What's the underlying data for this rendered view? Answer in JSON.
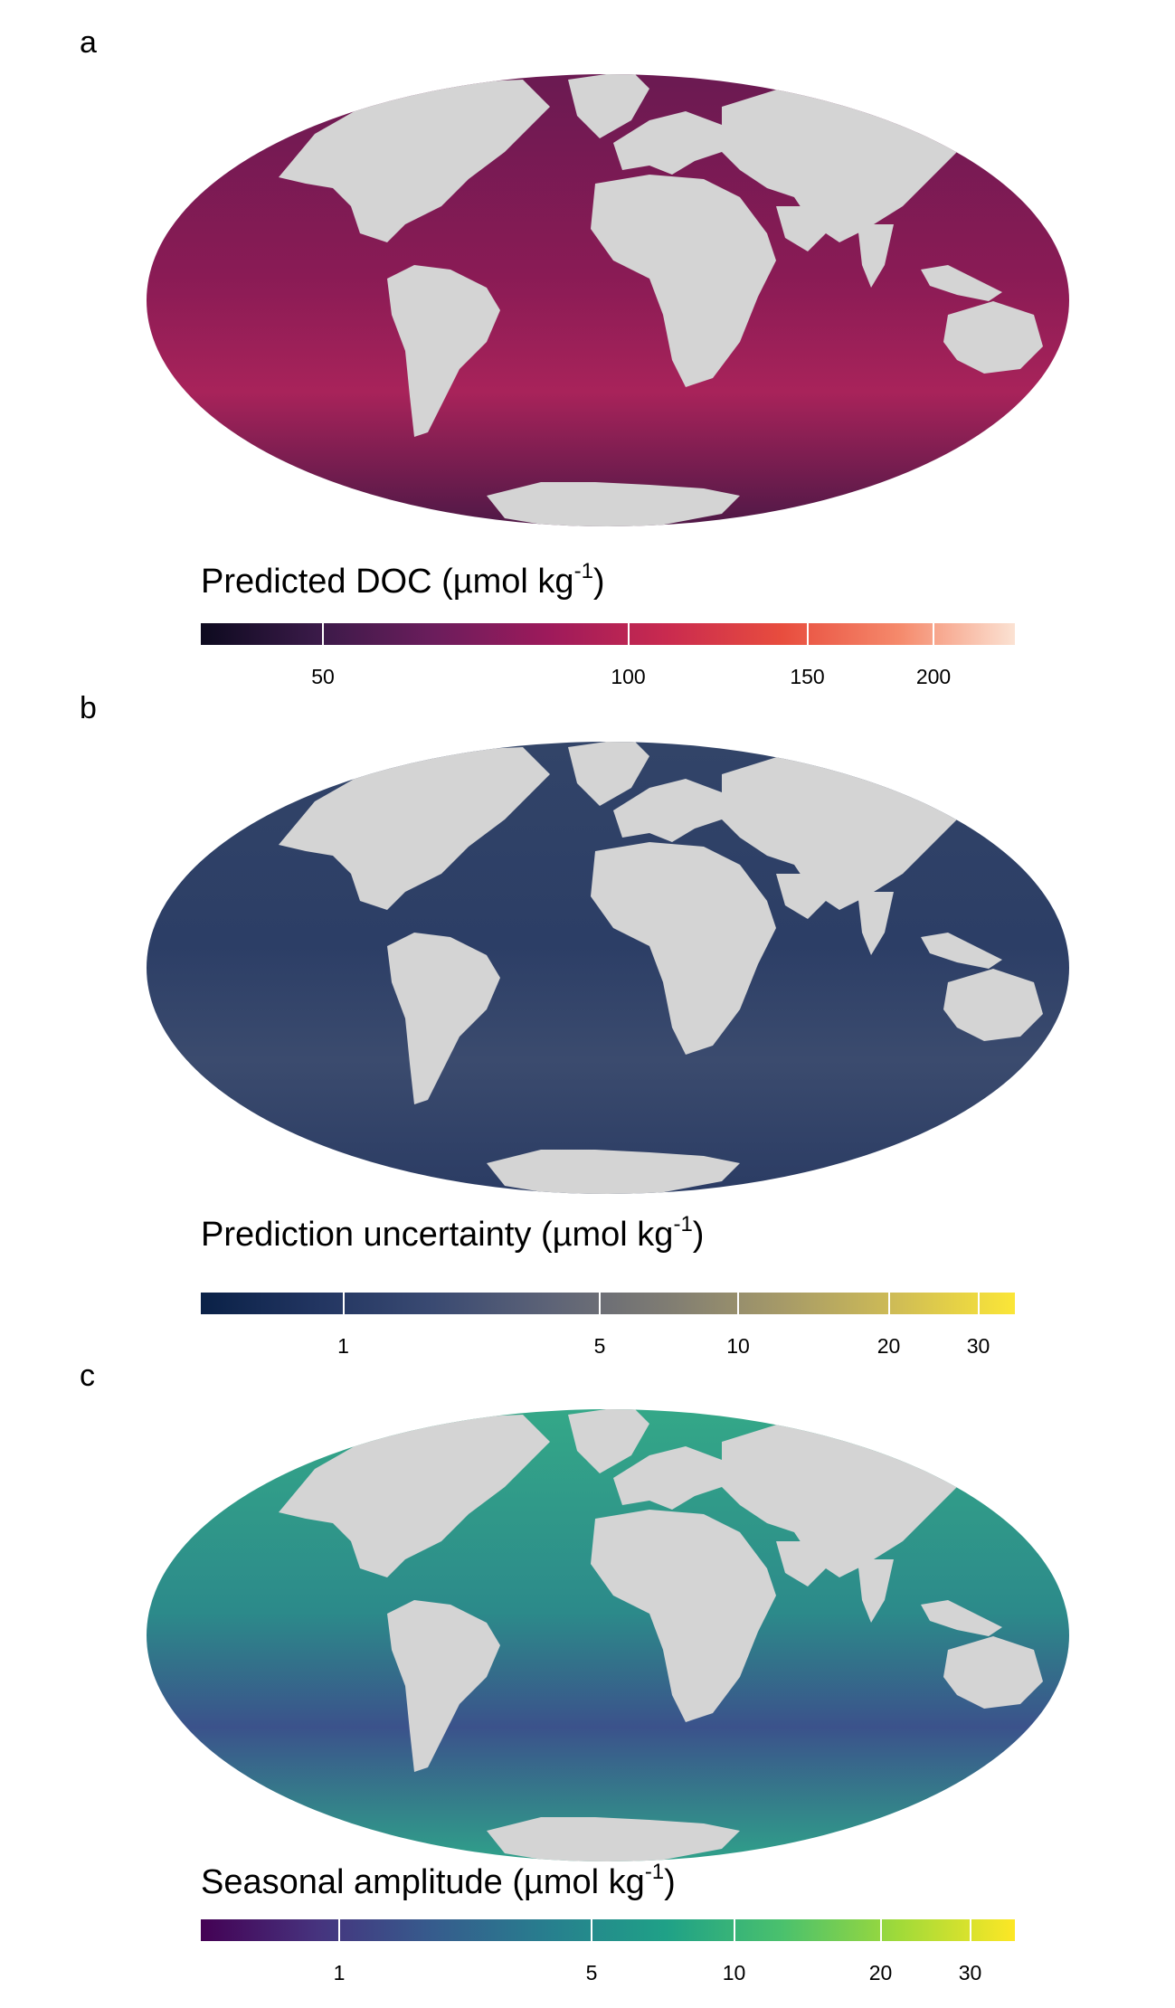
{
  "panels": [
    {
      "letter": "a",
      "legend": {
        "title": "Predicted DOC (µmol kg",
        "title_sup": "-1",
        "title_end": ")",
        "ticks": [
          {
            "label": "50",
            "frac": 0.15
          },
          {
            "label": "100",
            "frac": 0.525
          },
          {
            "label": "150",
            "frac": 0.745
          },
          {
            "label": "200",
            "frac": 0.9
          }
        ],
        "colors": [
          "#0d0a1f",
          "#3a1a48",
          "#6b1d5c",
          "#9e1a5b",
          "#c92a4f",
          "#e84d3e",
          "#f5896b",
          "#fbe2d3"
        ]
      },
      "ocean": {
        "base": "#8a1b55",
        "north": "#6a1a52",
        "south": "#4c1846",
        "coast": "#e5474e",
        "warm": "#a8235a"
      }
    },
    {
      "letter": "b",
      "legend": {
        "title": "Prediction uncertainty (µmol kg",
        "title_sup": "-1",
        "title_end": ")",
        "ticks": [
          {
            "label": "1",
            "frac": 0.175
          },
          {
            "label": "5",
            "frac": 0.49
          },
          {
            "label": "10",
            "frac": 0.66
          },
          {
            "label": "20",
            "frac": 0.845
          },
          {
            "label": "30",
            "frac": 0.955
          }
        ],
        "colors": [
          "#0a2147",
          "#223561",
          "#3a4a72",
          "#5d6377",
          "#7f7c73",
          "#a69a68",
          "#d0bd55",
          "#fbe637"
        ]
      },
      "ocean": {
        "base": "#2c3e66",
        "north": "#324468",
        "south": "#2a3b63",
        "coast": "#8e8668",
        "warm": "#3b4b6e"
      }
    },
    {
      "letter": "c",
      "legend": {
        "title": "Seasonal amplitude (µmol kg",
        "title_sup": "-1",
        "title_end": ")",
        "ticks": [
          {
            "label": "1",
            "frac": 0.17
          },
          {
            "label": "5",
            "frac": 0.48
          },
          {
            "label": "10",
            "frac": 0.655
          },
          {
            "label": "20",
            "frac": 0.835
          },
          {
            "label": "30",
            "frac": 0.945
          }
        ],
        "colors": [
          "#440154",
          "#46337e",
          "#365c8d",
          "#277f8e",
          "#1fa187",
          "#4ac16d",
          "#a0da39",
          "#fde725"
        ]
      },
      "ocean": {
        "base": "#2c8a8a",
        "north": "#34a888",
        "south": "#2fa38a",
        "coast": "#b9d83e",
        "warm": "#3b528b"
      }
    }
  ],
  "land_color": "#d4d4d4"
}
